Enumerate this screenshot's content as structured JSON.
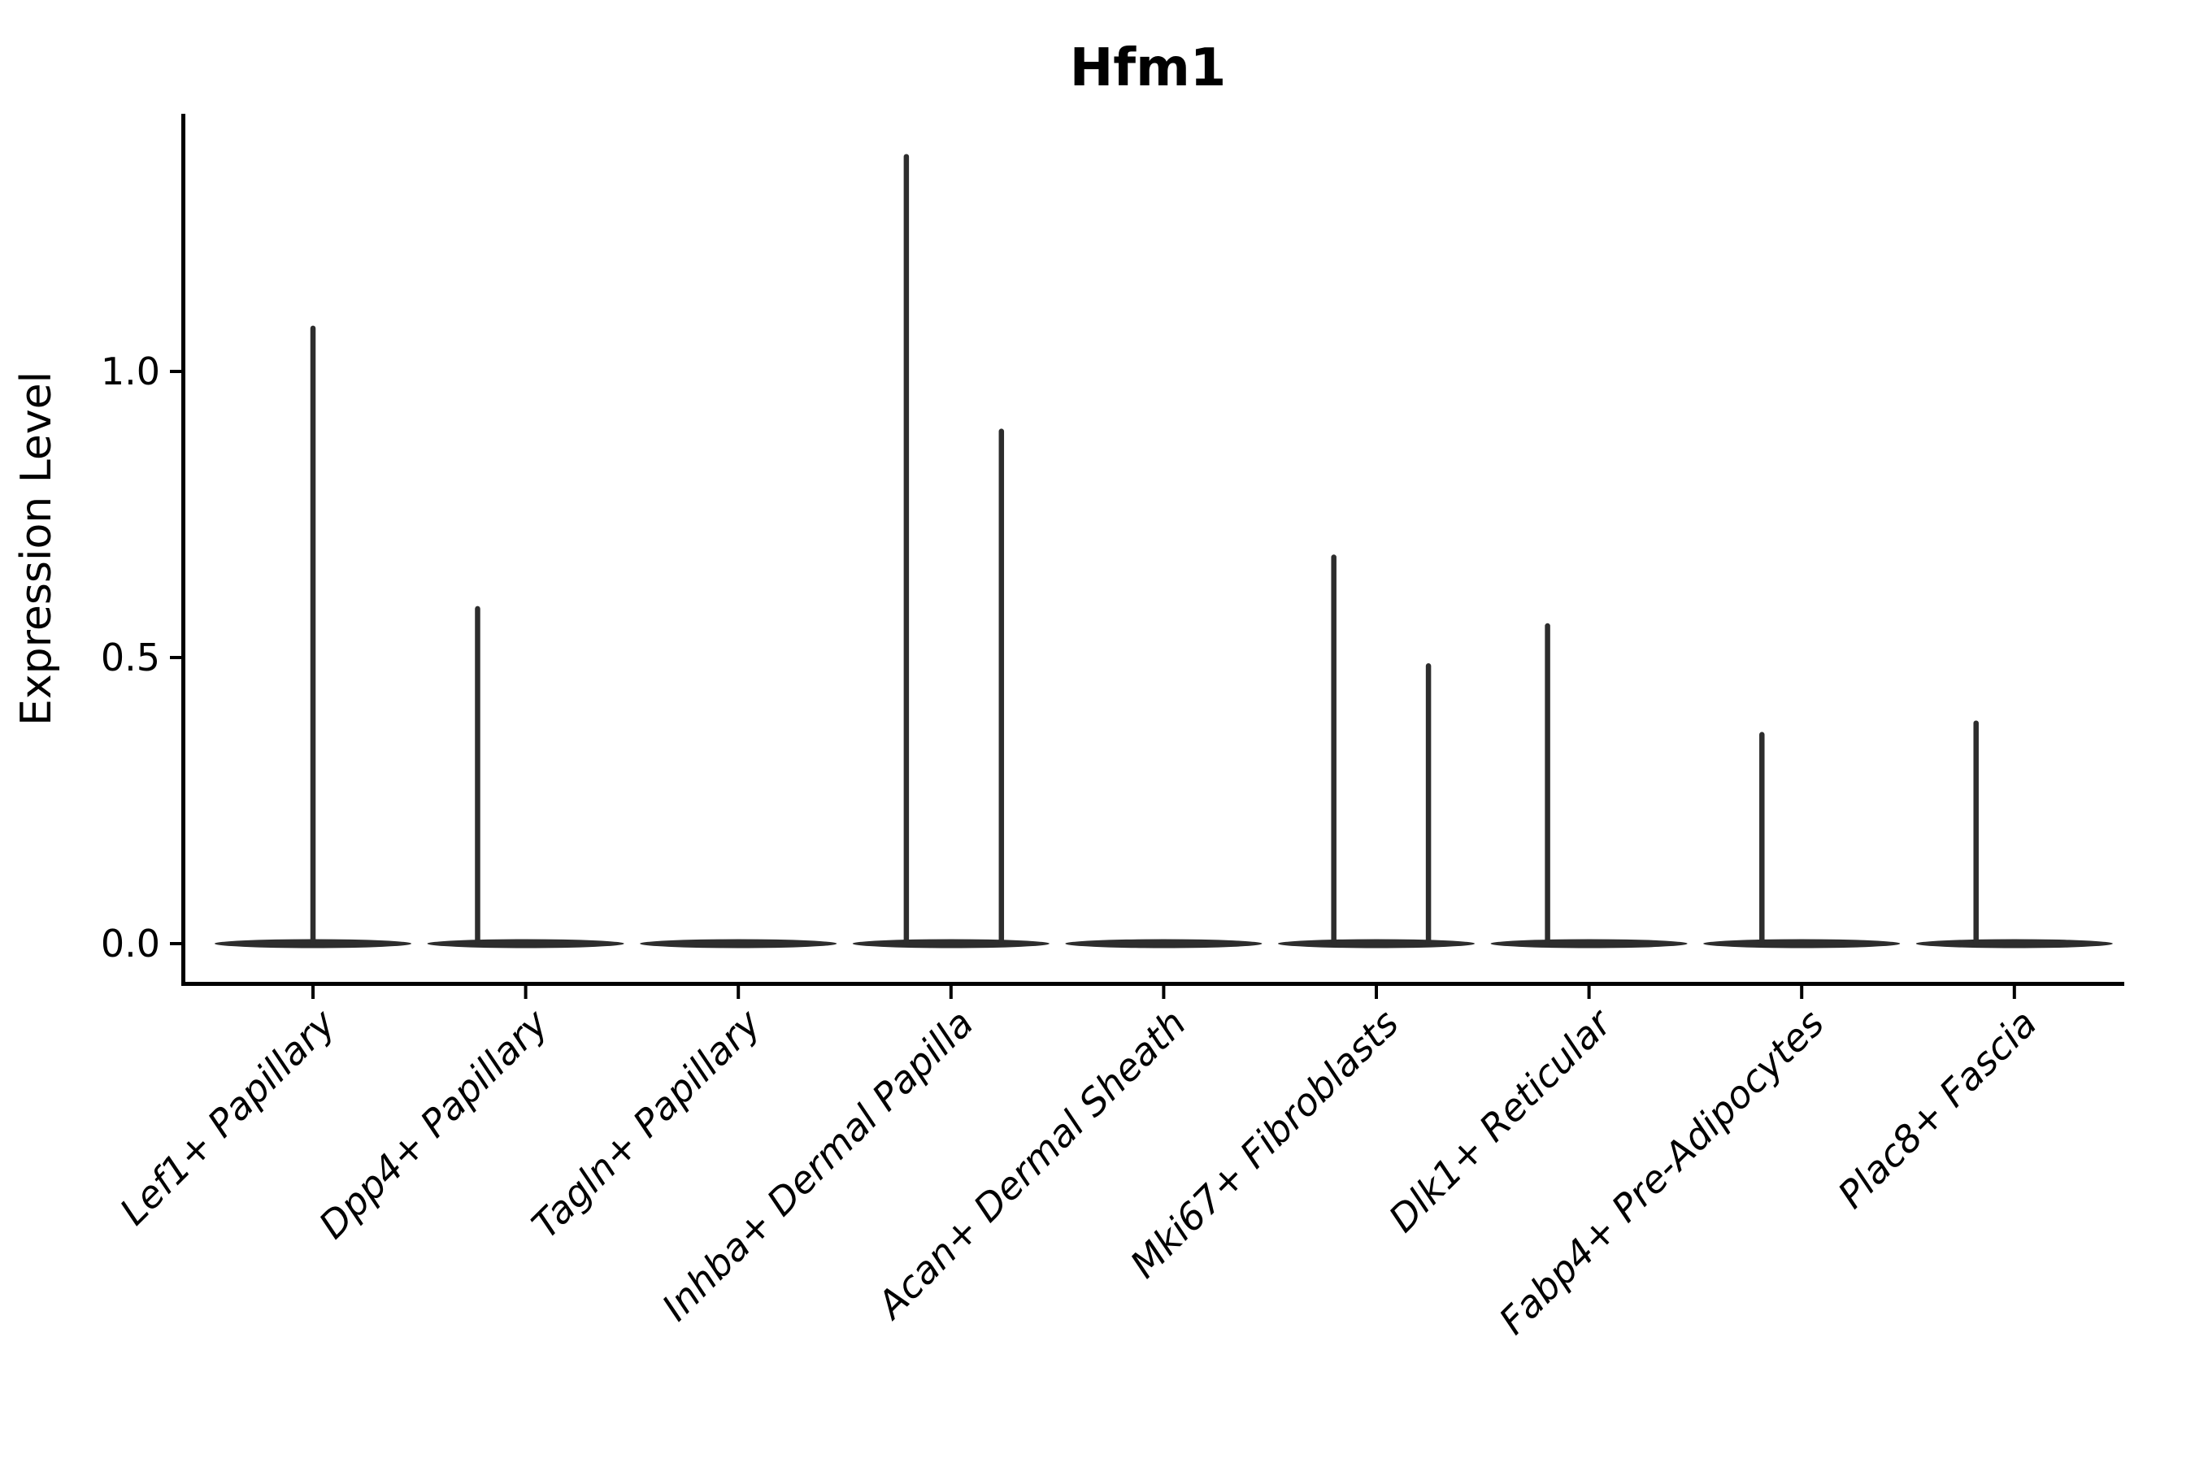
{
  "figure": {
    "background_color": "#ffffff",
    "spine_color": "#000000",
    "violin_color": "#2d2d2d",
    "text_color": "#000000"
  },
  "chart_data": {
    "type": "violin",
    "title": "Hfm1",
    "xlabel": "",
    "ylabel": "Expression Level",
    "ylim": [
      -0.07,
      1.45
    ],
    "grid": false,
    "legend": null,
    "yticks": [
      {
        "value": 0.0,
        "label": "0.0"
      },
      {
        "value": 0.5,
        "label": "0.5"
      },
      {
        "value": 1.0,
        "label": "1.0"
      }
    ],
    "categories": [
      "Lef1+ Papillary",
      "Dpp4+ Papillary",
      "Tagln+ Papillary",
      "Inhba+ Dermal Papilla",
      "Acan+ Dermal Sheath",
      "Mki67+ Fibroblasts",
      "Dlk1+ Reticular",
      "Fabp4+ Pre-Adipocytes",
      "Plac8+ Fascia"
    ],
    "series": [
      {
        "category": "Lef1+ Papillary",
        "baseline_value": 0.0,
        "spikes": [
          {
            "value": 1.08,
            "offset_frac": 0.0
          }
        ]
      },
      {
        "category": "Dpp4+ Papillary",
        "baseline_value": 0.0,
        "spikes": [
          {
            "value": 0.59,
            "offset_frac": -0.226
          }
        ]
      },
      {
        "category": "Tagln+ Papillary",
        "baseline_value": 0.0,
        "spikes": []
      },
      {
        "category": "Inhba+ Dermal Papilla",
        "baseline_value": 0.0,
        "spikes": [
          {
            "value": 1.38,
            "offset_frac": -0.21
          },
          {
            "value": 0.9,
            "offset_frac": 0.237
          }
        ]
      },
      {
        "category": "Acan+ Dermal Sheath",
        "baseline_value": 0.0,
        "spikes": []
      },
      {
        "category": "Mki67+ Fibroblasts",
        "baseline_value": 0.0,
        "spikes": [
          {
            "value": 0.68,
            "offset_frac": -0.2
          },
          {
            "value": 0.49,
            "offset_frac": 0.245
          }
        ]
      },
      {
        "category": "Dlk1+ Reticular",
        "baseline_value": 0.0,
        "spikes": [
          {
            "value": 0.56,
            "offset_frac": -0.195
          }
        ]
      },
      {
        "category": "Fabp4+ Pre-Adipocytes",
        "baseline_value": 0.0,
        "spikes": [
          {
            "value": 0.37,
            "offset_frac": -0.187
          }
        ]
      },
      {
        "category": "Plac8+ Fascia",
        "baseline_value": 0.0,
        "spikes": [
          {
            "value": 0.39,
            "offset_frac": -0.18
          }
        ]
      }
    ],
    "violin_band_width_frac": 0.925
  }
}
